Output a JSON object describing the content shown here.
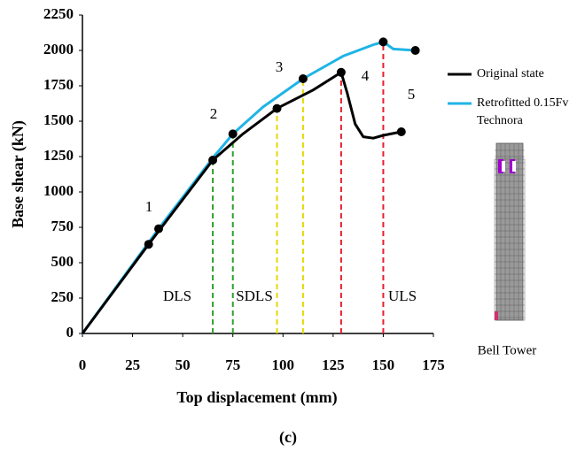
{
  "chart_data": {
    "type": "line",
    "x_label": "Top displacement (mm)",
    "y_label": "Base shear (kN)",
    "caption": "(c)",
    "side_label": "Bell Tower",
    "xlim": [
      0,
      175
    ],
    "xticks": [
      0,
      25,
      50,
      75,
      100,
      125,
      150,
      175
    ],
    "ylim": [
      0,
      2250
    ],
    "yticks": [
      0,
      250,
      500,
      750,
      1000,
      1250,
      1500,
      1750,
      2000,
      2250
    ],
    "series": [
      {
        "name": "Original state",
        "color": "#000000",
        "x": [
          0,
          33,
          65,
          80,
          97,
          115,
          129,
          132,
          136,
          140,
          145,
          150,
          159
        ],
        "values": [
          0,
          630,
          1225,
          1410,
          1590,
          1720,
          1845,
          1700,
          1480,
          1390,
          1380,
          1400,
          1425
        ],
        "points": {
          "x": [
            33,
            65,
            97,
            129,
            159
          ],
          "y": [
            630,
            1225,
            1590,
            1845,
            1425
          ]
        }
      },
      {
        "name": "Retrofitted 0.15Fv Technora",
        "color": "#1fb4e6",
        "x": [
          0,
          38,
          65,
          75,
          90,
          110,
          130,
          145,
          150,
          155,
          166
        ],
        "values": [
          0,
          740,
          1240,
          1410,
          1600,
          1800,
          1960,
          2040,
          2060,
          2010,
          2000
        ],
        "points": {
          "x": [
            38,
            75,
            110,
            150,
            166
          ],
          "y": [
            740,
            1410,
            1800,
            2060,
            2000
          ]
        }
      }
    ],
    "limit_lines": [
      {
        "x": 65,
        "y": 1225,
        "color": "#2ca02c"
      },
      {
        "x": 75,
        "y": 1410,
        "color": "#2ca02c"
      },
      {
        "x": 97,
        "y": 1590,
        "color": "#e6d800"
      },
      {
        "x": 110,
        "y": 1800,
        "color": "#e6d800"
      },
      {
        "x": 129,
        "y": 1845,
        "color": "#e8202a"
      },
      {
        "x": 150,
        "y": 2060,
        "color": "#e8202a"
      }
    ],
    "annotations": [
      "1",
      "2",
      "3",
      "4",
      "5",
      "DLS",
      "SDLS",
      "ULS"
    ]
  }
}
